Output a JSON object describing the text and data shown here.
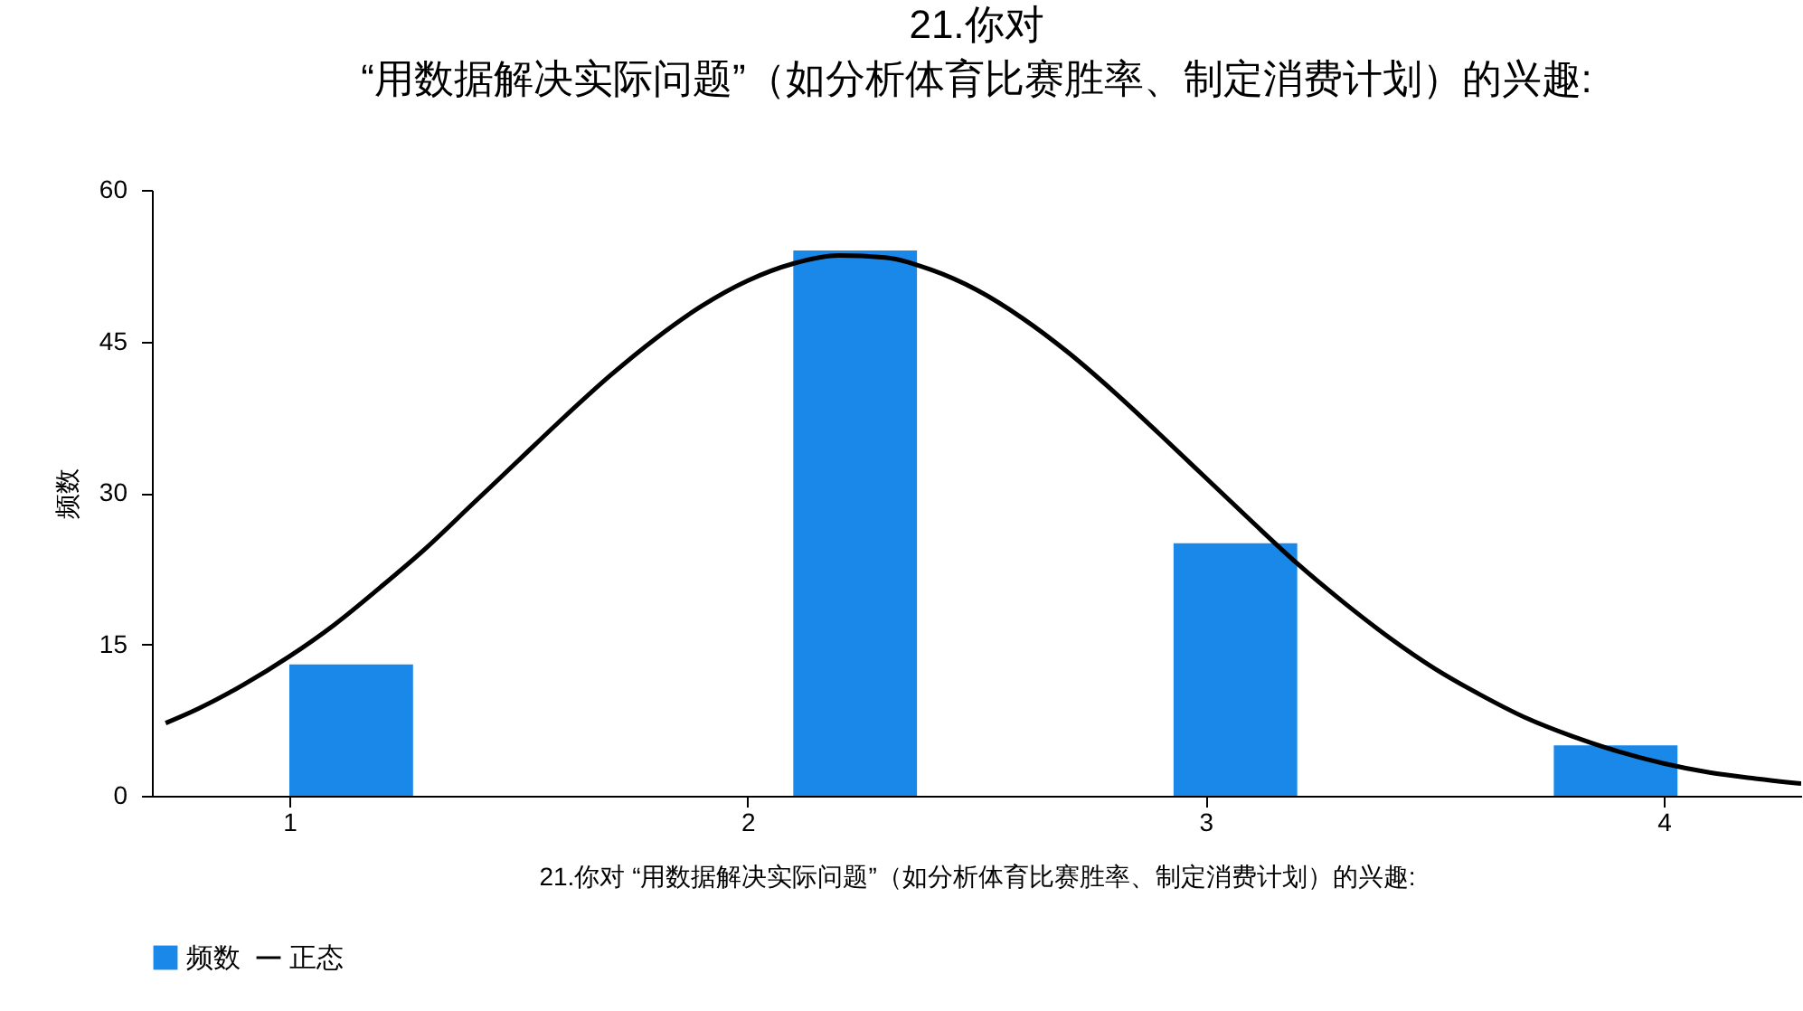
{
  "chart_data": {
    "type": "histogram",
    "title": "21.你对\n“用数据解决实际问题”（如分析体育比赛胜率、制定消费计划）的兴趣:",
    "xlabel": "21.你对 “用数据解决实际问题”（如分析体育比赛胜率、制定消费计划）的兴趣:",
    "ylabel": "频数",
    "bins": [
      1.0,
      1.27,
      2.1,
      2.37,
      2.93,
      3.2,
      3.76,
      4.03
    ],
    "series": [
      {
        "name": "频数",
        "color": "#1a88e8",
        "values": [
          13,
          0,
          54,
          0,
          25,
          0,
          5
        ]
      },
      {
        "name": "正态",
        "type": "line",
        "color": "#000000",
        "x": [
          0.73,
          0.8,
          0.9,
          1.0,
          1.1,
          1.2,
          1.3,
          1.4,
          1.5,
          1.6,
          1.7,
          1.8,
          1.9,
          2.0,
          2.1,
          2.2,
          2.3,
          2.4,
          2.5,
          2.6,
          2.7,
          2.8,
          2.9,
          3.0,
          3.1,
          3.2,
          3.3,
          3.4,
          3.5,
          3.6,
          3.7,
          3.8,
          3.9,
          4.0,
          4.1,
          4.2,
          4.3
        ],
        "values": [
          7.2,
          8.6,
          11.0,
          13.8,
          17.0,
          20.7,
          24.6,
          28.9,
          33.2,
          37.5,
          41.6,
          45.3,
          48.5,
          51.0,
          52.7,
          53.5,
          53.3,
          52.1,
          50.1,
          47.3,
          43.9,
          40.0,
          35.8,
          31.5,
          27.2,
          23.0,
          19.2,
          15.7,
          12.6,
          10.0,
          7.7,
          5.9,
          4.4,
          3.2,
          2.3,
          1.7,
          1.2
        ]
      }
    ],
    "xlim": [
      0.7,
      4.3
    ],
    "xticks": [
      1,
      2,
      3,
      4
    ],
    "ylim": [
      0,
      60
    ],
    "yticks": [
      0,
      15,
      30,
      45,
      60
    ],
    "legend": "bottom"
  }
}
